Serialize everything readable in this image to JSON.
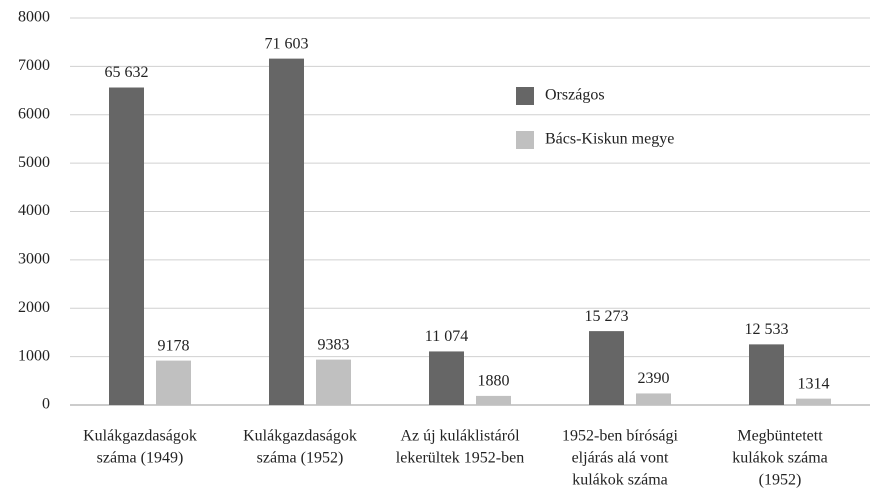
{
  "chart_data": {
    "type": "bar",
    "categories": [
      [
        "Kulákgazdaságok",
        "száma (1949)"
      ],
      [
        "Kulákgazdaságok",
        "száma (1952)"
      ],
      [
        "Az új kuláklistáról",
        "lekerültek 1952-ben"
      ],
      [
        "1952-ben bírósági",
        "eljárás alá vont",
        "kulákok száma"
      ],
      [
        "Megbüntetett",
        "kulákok száma",
        "(1952)"
      ]
    ],
    "series": [
      {
        "name": "Országos",
        "color": "#666666",
        "values": [
          6563.2,
          7160.3,
          1107.4,
          1527.3,
          1253.3
        ],
        "value_labels": [
          "65 632",
          "71 603",
          "11 074",
          "15 273",
          "12 533"
        ]
      },
      {
        "name": "Bács-Kiskun megye",
        "color": "#c0c0c0",
        "values": [
          917.8,
          938.3,
          188,
          239,
          131.4
        ],
        "value_labels": [
          "9178",
          "9383",
          "1880",
          "2390",
          "1314"
        ]
      }
    ],
    "ylim": [
      0,
      8000
    ],
    "yticks": [
      0,
      1000,
      2000,
      3000,
      4000,
      5000,
      6000,
      7000,
      8000
    ],
    "grid": true,
    "legend": "upper right"
  }
}
